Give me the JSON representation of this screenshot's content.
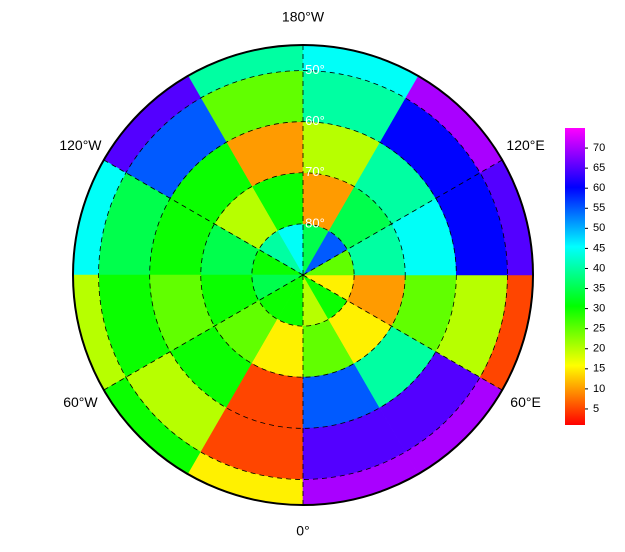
{
  "map": {
    "type": "polar-heatmap",
    "lon_labels": [
      {
        "lon": 180,
        "label": "180°W"
      },
      {
        "lon": 120,
        "label": "120°E"
      },
      {
        "lon": 60,
        "label": "60°E"
      },
      {
        "lon": 0,
        "label": "0°"
      },
      {
        "lon": -60,
        "label": "60°W"
      },
      {
        "lon": -120,
        "label": "120°W"
      }
    ],
    "lat_circles": [
      {
        "value": 50,
        "label": "50°"
      },
      {
        "value": 60,
        "label": "60°"
      },
      {
        "value": 70,
        "label": "70°"
      },
      {
        "value": 80,
        "label": "80°"
      }
    ],
    "lat_edges": [
      90,
      80,
      70,
      60,
      50,
      45
    ],
    "lon_edges": [
      -180,
      -150,
      -120,
      -90,
      -60,
      -30,
      0,
      30,
      60,
      90,
      120,
      150,
      180
    ],
    "values": [
      [
        45,
        30,
        10,
        25,
        40
      ],
      [
        40,
        20,
        30,
        55,
        65
      ],
      [
        30,
        35,
        30,
        35,
        45
      ],
      [
        35,
        30,
        25,
        30,
        20
      ],
      [
        30,
        25,
        30,
        20,
        30
      ],
      [
        30,
        15,
        5,
        5,
        15
      ],
      [
        20,
        25,
        55,
        65,
        70
      ],
      [
        30,
        15,
        40,
        65,
        70
      ],
      [
        15,
        10,
        25,
        20,
        5
      ],
      [
        25,
        40,
        45,
        60,
        65
      ],
      [
        55,
        35,
        40,
        60,
        70
      ],
      [
        35,
        10,
        20,
        40,
        45
      ]
    ],
    "colorbar": {
      "clim": [
        1,
        75
      ],
      "ticks": [
        5,
        10,
        15,
        20,
        25,
        30,
        35,
        40,
        45,
        50,
        55,
        60,
        65,
        70
      ],
      "colors": [
        "#ff0000",
        "#ff8000",
        "#ffff00",
        "#80ff00",
        "#00ff00",
        "#00ff80",
        "#00ffff",
        "#0080ff",
        "#0000ff",
        "#8000ff",
        "#ff00ff"
      ]
    }
  }
}
